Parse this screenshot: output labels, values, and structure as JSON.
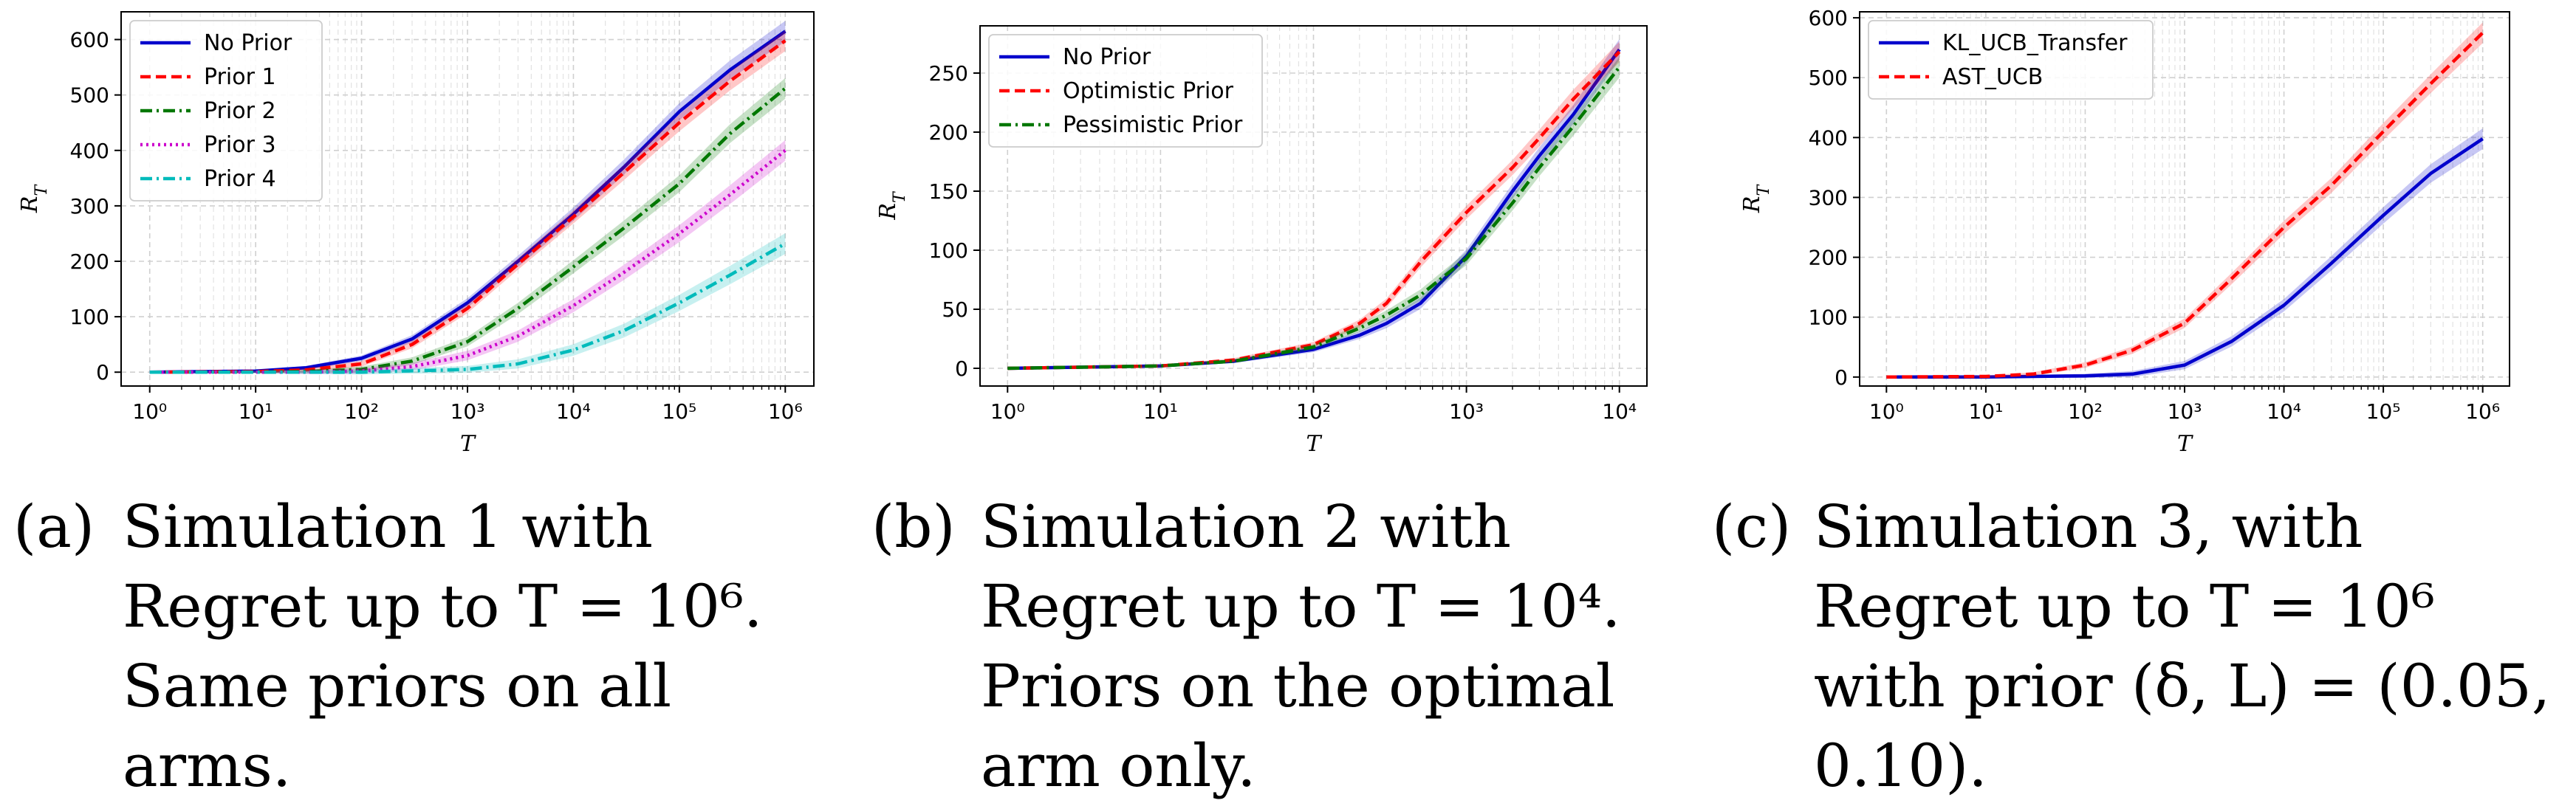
{
  "chart_data": [
    {
      "type": "line",
      "x_scale": "log",
      "xlabel": "T",
      "ylabel": "R_T",
      "xlim": [
        1,
        1000000
      ],
      "ylim": [
        -25,
        650
      ],
      "yticks": [
        0,
        100,
        200,
        300,
        400,
        500,
        600
      ],
      "xtick_exponents": [
        0,
        1,
        2,
        3,
        4,
        5,
        6
      ],
      "grid": true,
      "legend": "top-left",
      "series": [
        {
          "name": "No Prior",
          "color": "#0000cc",
          "dash": "solid",
          "x": [
            1,
            10,
            30,
            100,
            300,
            1000,
            3000,
            10000,
            30000,
            100000,
            300000,
            1000000
          ],
          "y": [
            0,
            2,
            8,
            25,
            60,
            125,
            200,
            285,
            370,
            470,
            545,
            615
          ]
        },
        {
          "name": "Prior 1",
          "color": "#ff0000",
          "dash": "dashed",
          "x": [
            1,
            10,
            30,
            100,
            300,
            1000,
            3000,
            10000,
            30000,
            100000,
            300000,
            1000000
          ],
          "y": [
            0,
            1,
            4,
            15,
            50,
            115,
            195,
            280,
            360,
            450,
            525,
            598
          ]
        },
        {
          "name": "Prior 2",
          "color": "#007700",
          "dash": "dashdot",
          "x": [
            1,
            10,
            30,
            100,
            300,
            1000,
            3000,
            10000,
            30000,
            100000,
            300000,
            1000000
          ],
          "y": [
            0,
            0,
            1,
            5,
            20,
            55,
            115,
            190,
            260,
            340,
            430,
            512
          ]
        },
        {
          "name": "Prior 3",
          "color": "#cc00cc",
          "dash": "dotted",
          "x": [
            1,
            10,
            30,
            100,
            300,
            1000,
            3000,
            10000,
            30000,
            100000,
            300000,
            1000000
          ],
          "y": [
            0,
            0,
            0,
            2,
            10,
            30,
            65,
            120,
            180,
            250,
            320,
            400
          ]
        },
        {
          "name": "Prior 4",
          "color": "#00bbbb",
          "dash": "dashdot",
          "x": [
            1,
            10,
            100,
            1000,
            3000,
            10000,
            30000,
            100000,
            300000,
            1000000
          ],
          "y": [
            0,
            0,
            0,
            5,
            15,
            40,
            75,
            125,
            175,
            232
          ]
        }
      ]
    },
    {
      "type": "line",
      "x_scale": "log",
      "xlabel": "T",
      "ylabel": "R_T",
      "xlim": [
        1,
        10000
      ],
      "ylim": [
        -15,
        290
      ],
      "yticks": [
        0,
        50,
        100,
        150,
        200,
        250
      ],
      "xtick_exponents": [
        0,
        1,
        2,
        3,
        4
      ],
      "grid": true,
      "legend": "top-left",
      "series": [
        {
          "name": "No Prior",
          "color": "#0000cc",
          "dash": "solid",
          "x": [
            1,
            10,
            30,
            100,
            200,
            300,
            500,
            1000,
            2000,
            3000,
            5000,
            10000
          ],
          "y": [
            0,
            2,
            6,
            16,
            28,
            38,
            55,
            95,
            150,
            180,
            215,
            270
          ]
        },
        {
          "name": "Optimistic Prior",
          "color": "#ff0000",
          "dash": "dashed",
          "x": [
            1,
            10,
            30,
            100,
            200,
            300,
            500,
            1000,
            2000,
            3000,
            5000,
            10000
          ],
          "y": [
            0,
            2,
            7,
            20,
            38,
            55,
            90,
            132,
            170,
            195,
            228,
            268
          ]
        },
        {
          "name": "Pessimistic Prior",
          "color": "#007700",
          "dash": "dashdot",
          "x": [
            1,
            10,
            30,
            100,
            200,
            300,
            500,
            1000,
            2000,
            3000,
            5000,
            10000
          ],
          "y": [
            0,
            2,
            6,
            18,
            34,
            45,
            62,
            93,
            140,
            170,
            205,
            255
          ]
        }
      ]
    },
    {
      "type": "line",
      "x_scale": "log",
      "xlabel": "T",
      "ylabel": "R_T",
      "xlim": [
        1,
        1000000
      ],
      "ylim": [
        -15,
        610
      ],
      "yticks": [
        0,
        100,
        200,
        300,
        400,
        500,
        600
      ],
      "xtick_exponents": [
        0,
        1,
        2,
        3,
        4,
        5,
        6
      ],
      "grid": true,
      "legend": "top-left",
      "series": [
        {
          "name": "KL_UCB_Transfer",
          "color": "#0000cc",
          "dash": "solid",
          "x": [
            1,
            10,
            100,
            300,
            1000,
            3000,
            10000,
            30000,
            100000,
            300000,
            1000000
          ],
          "y": [
            0,
            0,
            2,
            5,
            20,
            60,
            120,
            190,
            270,
            340,
            398
          ]
        },
        {
          "name": "AST_UCB",
          "color": "#ff0000",
          "dash": "dashed",
          "x": [
            1,
            10,
            30,
            100,
            300,
            1000,
            3000,
            10000,
            30000,
            100000,
            300000,
            1000000
          ],
          "y": [
            0,
            1,
            5,
            20,
            45,
            90,
            165,
            250,
            320,
            410,
            490,
            575
          ]
        }
      ]
    }
  ],
  "captions": [
    {
      "tag": "(a)",
      "text": "Simulation 1 with Regret up to T = 10⁶. Same priors on all arms."
    },
    {
      "tag": "(b)",
      "text": "Simulation 2 with Regret up to T = 10⁴. Priors on the optimal arm only."
    },
    {
      "tag": "(c)",
      "text": "Simulation 3, with Regret up to T = 10⁶ with prior (δ, L) = (0.05, 0.10)."
    }
  ]
}
